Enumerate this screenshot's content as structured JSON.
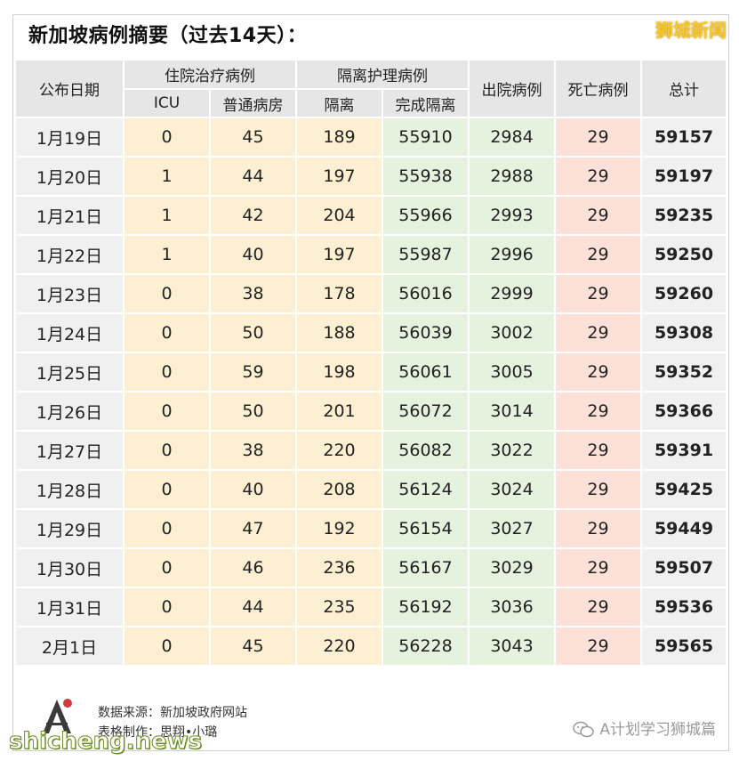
{
  "title": "新加坡病例摘要（过去14天）：",
  "brand": "狮城新闻",
  "headers": {
    "date": "公布日期",
    "hospital_group": "住院治疗病例",
    "icu": "ICU",
    "ward": "普通病房",
    "isolation_group": "隔离护理病例",
    "isolation": "隔离",
    "completed": "完成隔离",
    "discharged": "出院病例",
    "deaths": "死亡病例",
    "total": "总计"
  },
  "rows": [
    {
      "date": "1月19日",
      "icu": "0",
      "ward": "45",
      "isolation": "189",
      "completed": "55910",
      "discharged": "2984",
      "deaths": "29",
      "total": "59157"
    },
    {
      "date": "1月20日",
      "icu": "1",
      "ward": "44",
      "isolation": "197",
      "completed": "55938",
      "discharged": "2988",
      "deaths": "29",
      "total": "59197"
    },
    {
      "date": "1月21日",
      "icu": "1",
      "ward": "42",
      "isolation": "204",
      "completed": "55966",
      "discharged": "2993",
      "deaths": "29",
      "total": "59235"
    },
    {
      "date": "1月22日",
      "icu": "1",
      "ward": "40",
      "isolation": "197",
      "completed": "55987",
      "discharged": "2996",
      "deaths": "29",
      "total": "59250"
    },
    {
      "date": "1月23日",
      "icu": "0",
      "ward": "38",
      "isolation": "178",
      "completed": "56016",
      "discharged": "2999",
      "deaths": "29",
      "total": "59260"
    },
    {
      "date": "1月24日",
      "icu": "0",
      "ward": "50",
      "isolation": "188",
      "completed": "56039",
      "discharged": "3002",
      "deaths": "29",
      "total": "59308"
    },
    {
      "date": "1月25日",
      "icu": "0",
      "ward": "59",
      "isolation": "198",
      "completed": "56061",
      "discharged": "3005",
      "deaths": "29",
      "total": "59352"
    },
    {
      "date": "1月26日",
      "icu": "0",
      "ward": "50",
      "isolation": "201",
      "completed": "56072",
      "discharged": "3014",
      "deaths": "29",
      "total": "59366"
    },
    {
      "date": "1月27日",
      "icu": "0",
      "ward": "38",
      "isolation": "220",
      "completed": "56082",
      "discharged": "3022",
      "deaths": "29",
      "total": "59391"
    },
    {
      "date": "1月28日",
      "icu": "0",
      "ward": "40",
      "isolation": "208",
      "completed": "56124",
      "discharged": "3024",
      "deaths": "29",
      "total": "59425"
    },
    {
      "date": "1月29日",
      "icu": "0",
      "ward": "47",
      "isolation": "192",
      "completed": "56154",
      "discharged": "3027",
      "deaths": "29",
      "total": "59449"
    },
    {
      "date": "1月30日",
      "icu": "0",
      "ward": "46",
      "isolation": "236",
      "completed": "56167",
      "discharged": "3029",
      "deaths": "29",
      "total": "59507"
    },
    {
      "date": "1月31日",
      "icu": "0",
      "ward": "44",
      "isolation": "235",
      "completed": "56192",
      "discharged": "3036",
      "deaths": "29",
      "total": "59536"
    },
    {
      "date": "2月1日",
      "icu": "0",
      "ward": "45",
      "isolation": "220",
      "completed": "56228",
      "discharged": "3043",
      "deaths": "29",
      "total": "59565"
    }
  ],
  "footer": {
    "source": "数据来源：新加坡政府网站",
    "maker": "表格制作：思翔•小璐"
  },
  "watermark": "shicheng.news",
  "wechat_account": "A计划学习狮城篇",
  "icons": {
    "logo": "a-plan-logo-icon",
    "wechat": "wechat-icon"
  },
  "colors": {
    "header_gray": "#e6e6e6",
    "hospital_yellow": "#fdf0d2",
    "completed_green": "#e5f2dd",
    "deaths_red": "#fde1d8",
    "brand_gold": "#f6c72b"
  }
}
